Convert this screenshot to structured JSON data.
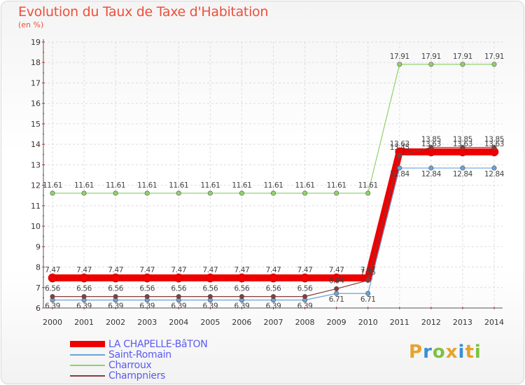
{
  "title": "Evolution du Taux de Taxe d'Habitation",
  "subtitle": "(en %)",
  "logo": {
    "text": [
      "P",
      "r",
      "o",
      "x",
      "i",
      "t",
      "i"
    ],
    "colors": [
      "#e8a22b",
      "#3a8fd4",
      "#7cc242",
      "#e8a22b",
      "#3a8fd4",
      "#e8a22b",
      "#7cc242"
    ]
  },
  "chart_data": {
    "type": "line",
    "x": [
      "2000",
      "2001",
      "2002",
      "2003",
      "2004",
      "2005",
      "2006",
      "2007",
      "2008",
      "2009",
      "2010",
      "2011",
      "2012",
      "2013",
      "2014"
    ],
    "ylim": [
      6,
      19
    ],
    "yticks": [
      "6",
      "7",
      "8",
      "9",
      "10",
      "11",
      "12",
      "13",
      "14",
      "15",
      "16",
      "17",
      "18",
      "19"
    ],
    "grid": true,
    "legend_position": "bottom-left",
    "series": [
      {
        "name": "LA CHAPELLE-BâTON",
        "color": "#ee0000",
        "width": 10,
        "values": [
          7.47,
          7.47,
          7.47,
          7.47,
          7.47,
          7.47,
          7.47,
          7.47,
          7.47,
          7.47,
          7.47,
          13.63,
          13.63,
          13.63,
          13.63
        ],
        "labels": [
          "7.47",
          "7.47",
          "7.47",
          "7.47",
          "7.47",
          "7.47",
          "7.47",
          "7.47",
          "7.47",
          "7.47",
          "7.47",
          "13.63",
          "13.63",
          "13.63",
          "13.63"
        ]
      },
      {
        "name": "Saint-Romain",
        "color": "#6ba3d6",
        "width": 1.2,
        "values": [
          6.39,
          6.39,
          6.39,
          6.39,
          6.39,
          6.39,
          6.39,
          6.39,
          6.39,
          6.71,
          6.71,
          12.84,
          12.84,
          12.84,
          12.84
        ],
        "labels": [
          "6.39",
          "6.39",
          "6.39",
          "6.39",
          "6.39",
          "6.39",
          "6.39",
          "6.39",
          "6.39",
          "6.71",
          "6.71",
          "12.84",
          "12.84",
          "12.84",
          "12.84"
        ]
      },
      {
        "name": "Charroux",
        "color": "#8fd36a",
        "width": 1.2,
        "values": [
          11.61,
          11.61,
          11.61,
          11.61,
          11.61,
          11.61,
          11.61,
          11.61,
          11.61,
          11.61,
          11.61,
          17.91,
          17.91,
          17.91,
          17.91
        ],
        "labels": [
          "11.61",
          "11.61",
          "11.61",
          "11.61",
          "11.61",
          "11.61",
          "11.61",
          "11.61",
          "11.61",
          "11.61",
          "11.61",
          "17.91",
          "17.91",
          "17.91",
          "17.91"
        ]
      },
      {
        "name": "Champniers",
        "color": "#8a3b3b",
        "width": 1.2,
        "values": [
          6.56,
          6.56,
          6.56,
          6.56,
          6.56,
          6.56,
          6.56,
          6.56,
          6.56,
          6.94,
          7.35,
          13.45,
          13.85,
          13.85,
          13.85
        ],
        "labels": [
          "6.56",
          "6.56",
          "6.56",
          "6.56",
          "6.56",
          "6.56",
          "6.56",
          "6.56",
          "6.56",
          "6.94",
          "7.35",
          "13.45",
          "13.85",
          "13.85",
          "13.85"
        ]
      }
    ]
  }
}
